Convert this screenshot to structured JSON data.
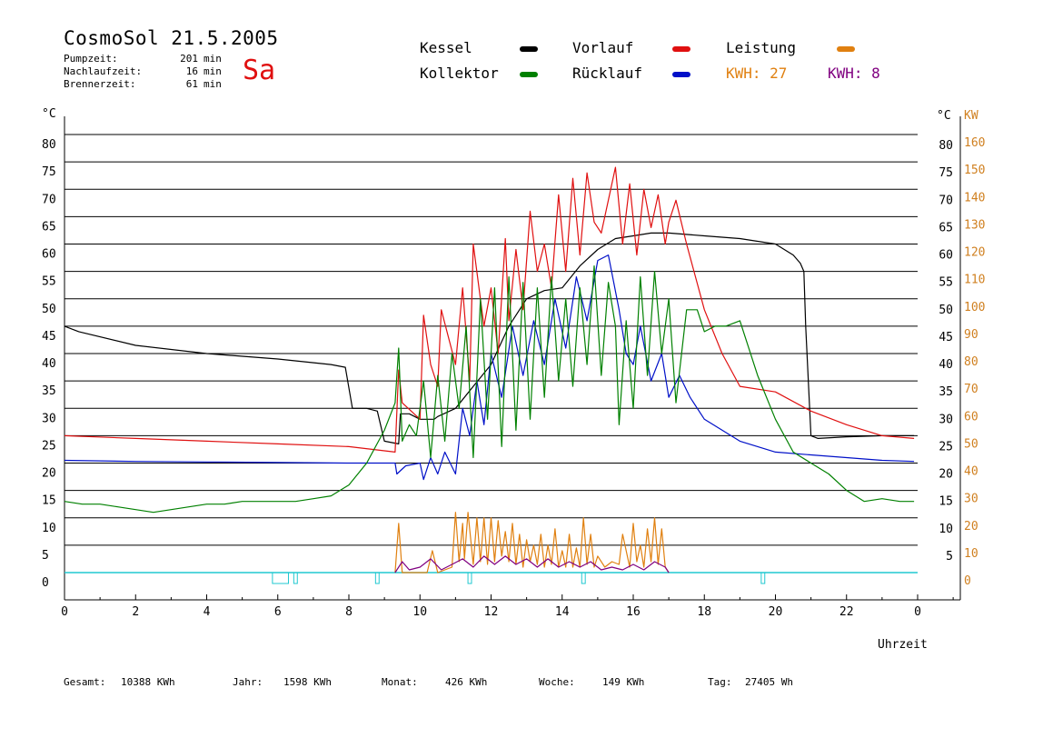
{
  "header": {
    "title": "CosmoSol 21.5.2005",
    "day": "Sa",
    "stats": [
      {
        "label": "Pumpzeit:",
        "value": "201",
        "unit": "min"
      },
      {
        "label": "Nachlaufzeit:",
        "value": "16",
        "unit": "min"
      },
      {
        "label": "Brennerzeit:",
        "value": "61",
        "unit": "min"
      }
    ]
  },
  "legend": {
    "kessel": "Kessel",
    "kollektor": "Kollektor",
    "vorlauf": "Vorlauf",
    "ruecklauf": "Rücklauf",
    "leistung": "Leistung",
    "kwh_orange": "KWH: 27",
    "kwh_purple": "KWH: 8"
  },
  "axes": {
    "left_unit": "°C",
    "right_unit": "°C",
    "kw_unit": "KW",
    "x_label": "Uhrzeit"
  },
  "colors": {
    "kessel": "#000000",
    "kollektor": "#008000",
    "vorlauf": "#e01010",
    "ruecklauf": "#0010c8",
    "leistung": "#e08010",
    "kwh_purple": "#800080",
    "pump": "#20c8d0",
    "kw_axis": "#d08020"
  },
  "footer": [
    {
      "label": "Gesamt:",
      "value": "10388 KWh"
    },
    {
      "label": "Jahr:",
      "value": "1598 KWh"
    },
    {
      "label": "Monat:",
      "value": "426 KWh"
    },
    {
      "label": "Woche:",
      "value": "149 KWh"
    },
    {
      "label": "Tag:",
      "value": "27405 Wh"
    }
  ],
  "chart_data": {
    "type": "line",
    "x_unit": "hour",
    "xlim": [
      0,
      24
    ],
    "ylim": [
      0,
      80
    ],
    "y2lim": [
      0,
      160
    ],
    "x_ticks": [
      "0",
      "2",
      "4",
      "6",
      "8",
      "10",
      "12",
      "14",
      "16",
      "18",
      "20",
      "22",
      "0"
    ],
    "y_left_ticks": [
      "0",
      "5",
      "10",
      "15",
      "20",
      "25",
      "30",
      "35",
      "40",
      "45",
      "50",
      "55",
      "60",
      "65",
      "70",
      "75",
      "80"
    ],
    "y_right_ticks": [
      "5",
      "10",
      "15",
      "20",
      "25",
      "30",
      "35",
      "40",
      "45",
      "50",
      "55",
      "60",
      "65",
      "70",
      "75",
      "80"
    ],
    "y_kw_ticks": [
      "0",
      "10",
      "20",
      "30",
      "40",
      "50",
      "60",
      "70",
      "80",
      "90",
      "100",
      "110",
      "120",
      "130",
      "140",
      "150",
      "160"
    ],
    "grid": true,
    "series": [
      {
        "name": "Kessel",
        "key": "kessel",
        "x": [
          0,
          0.4,
          2,
          4,
          6,
          7.5,
          7.9,
          8.1,
          8.5,
          8.8,
          9.0,
          9.4,
          9.45,
          9.7,
          10.0,
          10.4,
          10.5,
          11.0,
          11.5,
          12.0,
          12.5,
          13.0,
          13.5,
          14.0,
          14.5,
          15.0,
          15.5,
          16.0,
          16.5,
          17.0,
          18.0,
          19.0,
          20.0,
          20.5,
          20.7,
          20.8,
          20.85,
          21.0,
          21.2,
          22,
          23,
          23.9
        ],
        "y": [
          45,
          44,
          41.5,
          40,
          39,
          38,
          37.5,
          30,
          30,
          29.5,
          24,
          23.5,
          29,
          29,
          28,
          28,
          28.5,
          30,
          34,
          38,
          45,
          50,
          51.5,
          52,
          56,
          59,
          61,
          61.5,
          62,
          62,
          61.5,
          61,
          60,
          58,
          56.5,
          55,
          45,
          25,
          24.5,
          24.8,
          25,
          25
        ]
      },
      {
        "name": "Vorlauf",
        "key": "vorlauf",
        "x": [
          0,
          2,
          4,
          6,
          8,
          9.3,
          9.4,
          9.5,
          10.0,
          10.1,
          10.3,
          10.5,
          10.6,
          11.0,
          11.2,
          11.4,
          11.5,
          11.8,
          12.0,
          12.2,
          12.4,
          12.5,
          12.7,
          12.9,
          13.1,
          13.3,
          13.5,
          13.7,
          13.9,
          14.1,
          14.3,
          14.5,
          14.7,
          14.9,
          15.1,
          15.3,
          15.5,
          15.7,
          15.9,
          16.1,
          16.3,
          16.5,
          16.7,
          16.9,
          17.0,
          17.2,
          17.5,
          18.0,
          18.5,
          19.0,
          20.0,
          21.0,
          22.0,
          23.0,
          23.9
        ],
        "y": [
          25,
          24.5,
          24,
          23.5,
          23,
          22,
          37,
          31,
          28,
          47,
          38,
          34,
          48,
          38,
          52,
          35,
          60,
          45,
          52,
          40,
          61,
          46,
          59,
          48,
          66,
          55,
          60,
          52,
          69,
          55,
          72,
          58,
          73,
          64,
          62,
          68,
          74,
          60,
          71,
          58,
          70,
          63,
          69,
          60,
          64,
          68,
          60,
          48,
          40,
          34,
          33,
          29.5,
          27,
          25,
          24.5
        ]
      },
      {
        "name": "Rücklauf",
        "key": "ruecklauf",
        "x": [
          0,
          2,
          4,
          6,
          8,
          9.3,
          9.35,
          9.6,
          10.0,
          10.1,
          10.3,
          10.5,
          10.7,
          11.0,
          11.2,
          11.4,
          11.6,
          11.8,
          12.0,
          12.3,
          12.6,
          12.9,
          13.2,
          13.5,
          13.8,
          14.1,
          14.4,
          14.7,
          15.0,
          15.3,
          15.6,
          15.8,
          16.0,
          16.2,
          16.5,
          16.8,
          17.0,
          17.3,
          17.6,
          18.0,
          19.0,
          20.0,
          21.0,
          22.0,
          23.0,
          23.9
        ],
        "y": [
          20.5,
          20.3,
          20.2,
          20.1,
          20,
          20,
          18,
          19.5,
          20,
          17,
          21,
          18,
          22,
          18,
          30,
          25,
          35,
          27,
          40,
          32,
          45,
          36,
          46,
          38,
          50,
          41,
          54,
          46,
          57,
          58,
          48,
          40,
          38,
          45,
          35,
          40,
          32,
          36,
          32,
          28,
          24,
          22,
          21.5,
          21,
          20.5,
          20.3
        ]
      },
      {
        "name": "Kollektor",
        "key": "kollektor",
        "x": [
          0,
          0.5,
          1,
          1.5,
          2,
          2.5,
          3,
          3.5,
          4,
          4.5,
          5,
          5.5,
          6,
          6.5,
          7,
          7.5,
          8,
          8.5,
          9.0,
          9.3,
          9.4,
          9.5,
          9.7,
          9.9,
          10.1,
          10.3,
          10.5,
          10.7,
          10.9,
          11.1,
          11.3,
          11.5,
          11.7,
          11.9,
          12.1,
          12.3,
          12.5,
          12.7,
          12.9,
          13.1,
          13.3,
          13.5,
          13.7,
          13.9,
          14.1,
          14.3,
          14.5,
          14.7,
          14.9,
          15.1,
          15.3,
          15.5,
          15.6,
          15.8,
          16.0,
          16.2,
          16.4,
          16.6,
          16.8,
          17.0,
          17.2,
          17.5,
          17.8,
          18.0,
          18.3,
          18.6,
          19.0,
          19.5,
          20.0,
          20.5,
          21.0,
          21.5,
          22.0,
          22.5,
          23.0,
          23.5,
          23.9
        ],
        "y": [
          13,
          12.5,
          12.5,
          12,
          11.5,
          11,
          11.5,
          12,
          12.5,
          12.5,
          13,
          13,
          13,
          13,
          13.5,
          14,
          16,
          20,
          26,
          31,
          41,
          24,
          27,
          25,
          35,
          21,
          36,
          24,
          40,
          30,
          45,
          21,
          50,
          28,
          52,
          23,
          54,
          26,
          53,
          28,
          52,
          32,
          54,
          35,
          50,
          34,
          52,
          38,
          56,
          36,
          53,
          45,
          27,
          46,
          30,
          54,
          36,
          55,
          40,
          50,
          31,
          48,
          48,
          44,
          45,
          45,
          46,
          36,
          28,
          22,
          20,
          18,
          15,
          13,
          13.5,
          13,
          13
        ]
      },
      {
        "name": "Leistung",
        "key": "leistung",
        "axis": "kw",
        "x": [
          9.3,
          9.4,
          9.5,
          10.2,
          10.35,
          10.5,
          10.9,
          11.0,
          11.1,
          11.2,
          11.25,
          11.35,
          11.5,
          11.6,
          11.7,
          11.8,
          11.9,
          12.0,
          12.1,
          12.2,
          12.3,
          12.4,
          12.5,
          12.6,
          12.7,
          12.8,
          12.9,
          13.0,
          13.1,
          13.2,
          13.3,
          13.4,
          13.5,
          13.6,
          13.7,
          13.8,
          13.9,
          14.0,
          14.1,
          14.2,
          14.3,
          14.4,
          14.5,
          14.6,
          14.7,
          14.8,
          14.9,
          15.0,
          15.2,
          15.4,
          15.6,
          15.7,
          15.9,
          16.0,
          16.1,
          16.2,
          16.3,
          16.4,
          16.5,
          16.6,
          16.7,
          16.8,
          16.9,
          17.0
        ],
        "y": [
          0,
          18,
          0,
          0,
          8,
          0,
          2,
          22,
          4,
          18,
          5,
          22,
          3,
          20,
          4,
          20,
          3,
          20,
          4,
          19,
          6,
          15,
          4,
          18,
          3,
          14,
          2,
          12,
          4,
          10,
          3,
          14,
          2,
          10,
          3,
          16,
          2,
          8,
          2,
          14,
          2,
          9,
          2,
          20,
          3,
          14,
          2,
          6,
          2,
          4,
          3,
          14,
          2,
          18,
          4,
          10,
          2,
          16,
          4,
          20,
          3,
          16,
          2,
          0
        ]
      },
      {
        "name": "KWH",
        "key": "kwh_purple",
        "axis": "kw",
        "x": [
          9.3,
          9.5,
          9.7,
          10.0,
          10.3,
          10.6,
          10.9,
          11.2,
          11.5,
          11.8,
          12.1,
          12.4,
          12.7,
          13.0,
          13.3,
          13.6,
          13.9,
          14.2,
          14.5,
          14.8,
          15.1,
          15.4,
          15.7,
          16.0,
          16.3,
          16.6,
          16.9,
          17.0
        ],
        "y": [
          0,
          4,
          1,
          2,
          5,
          1,
          3,
          5,
          2,
          6,
          3,
          6,
          3,
          5,
          2,
          5,
          2,
          4,
          2,
          4,
          1,
          2,
          1,
          3,
          1,
          4,
          2,
          0
        ]
      }
    ],
    "pump_markers": [
      {
        "start": 5.85,
        "end": 6.3
      },
      {
        "start": 6.45,
        "end": 6.55
      },
      {
        "start": 8.75,
        "end": 8.85
      },
      {
        "start": 11.35,
        "end": 11.45
      },
      {
        "start": 14.55,
        "end": 14.65
      },
      {
        "start": 19.6,
        "end": 19.7
      }
    ]
  }
}
